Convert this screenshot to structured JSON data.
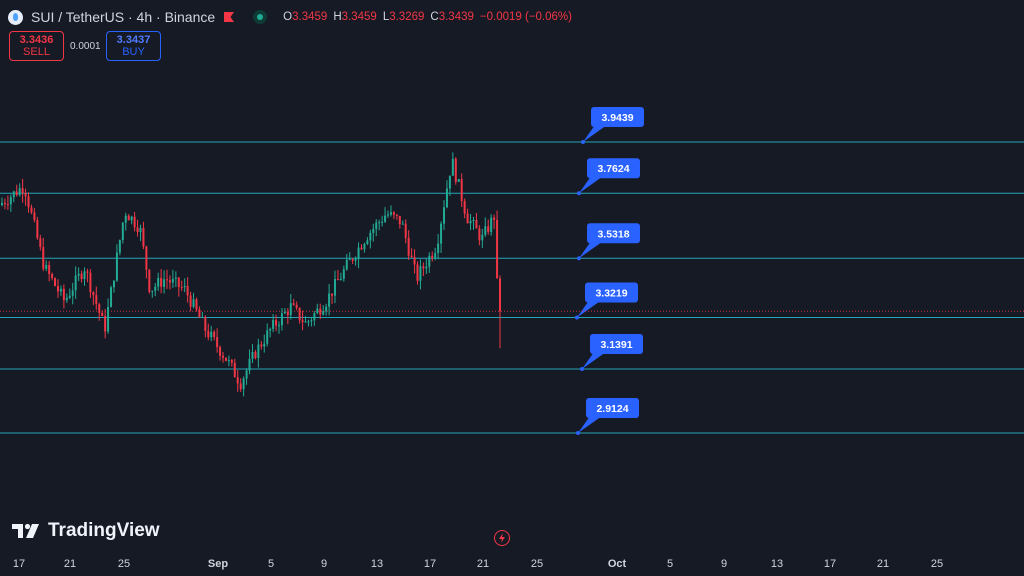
{
  "header": {
    "title": "SUI / TetherUS · 4h · Binance",
    "ohlc": [
      {
        "k": "O",
        "v": "3.3459"
      },
      {
        "k": "H",
        "v": "3.3459"
      },
      {
        "k": "L",
        "v": "3.3269"
      },
      {
        "k": "C",
        "v": "3.3439"
      },
      {
        "k": "",
        "v": "−0.0019 (−0.06%)"
      }
    ]
  },
  "trade": {
    "sell_price": "3.3436",
    "sell_label": "SELL",
    "spread": "0.0001",
    "buy_price": "3.3437",
    "buy_label": "BUY"
  },
  "logo": "TradingView",
  "colors": {
    "background": "#161a25",
    "level_line": "#22a6b8",
    "label_bg": "#2962ff",
    "up": "#22ab94",
    "down": "#f23645",
    "text": "#d1d4dc"
  },
  "icons": [
    "sui-logo-icon",
    "flag-icon",
    "market-status-icon",
    "tradingview-logo-icon",
    "lightning-icon"
  ],
  "chart_data": {
    "type": "candlestick",
    "x_tick_labels": [
      "17",
      "21",
      "25",
      "Sep",
      "5",
      "9",
      "13",
      "17",
      "21",
      "25",
      "Oct",
      "5",
      "9",
      "13",
      "17",
      "21",
      "25"
    ],
    "price_levels": [
      3.9439,
      3.7624,
      3.5318,
      3.3219,
      3.1391,
      2.9124
    ],
    "current_price": 3.3439,
    "ylim": [
      2.7,
      4.45
    ],
    "visible_trend": [
      [
        1,
        3.72
      ],
      [
        6,
        3.79
      ],
      [
        10,
        3.5
      ],
      [
        14,
        3.38
      ],
      [
        18,
        3.5
      ],
      [
        22,
        3.28
      ],
      [
        26,
        3.7
      ],
      [
        29,
        3.64
      ],
      [
        31,
        3.42
      ],
      [
        34,
        3.46
      ],
      [
        38,
        3.42
      ],
      [
        42,
        3.28
      ],
      [
        46,
        3.18
      ],
      [
        49,
        3.09
      ],
      [
        52,
        3.2
      ],
      [
        55,
        3.28
      ],
      [
        59,
        3.36
      ],
      [
        62,
        3.3
      ],
      [
        66,
        3.38
      ],
      [
        70,
        3.5
      ],
      [
        74,
        3.61
      ],
      [
        78,
        3.69
      ],
      [
        81,
        3.66
      ],
      [
        84,
        3.46
      ],
      [
        88,
        3.58
      ],
      [
        91,
        3.88
      ],
      [
        94,
        3.68
      ],
      [
        97,
        3.6
      ],
      [
        100,
        3.7
      ]
    ]
  }
}
